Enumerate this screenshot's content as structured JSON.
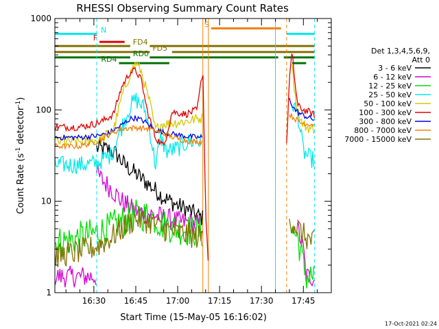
{
  "chart_data": {
    "type": "line",
    "title": "RHESSI Observing Summary Count Rates",
    "xlabel": "Start Time (15-May-05 16:16:02)",
    "ylabel": "Count Rate (s⁻¹ detector⁻¹)",
    "ylabel_parts": {
      "main": "Count Rate (s",
      "exp1": "-1",
      "mid": " detector",
      "exp2": "-1",
      "end": ")"
    },
    "y_scale": "log",
    "ylim": [
      1,
      1000
    ],
    "xlim": [
      "16:16",
      "17:55"
    ],
    "x_ticks": [
      "16:30",
      "16:45",
      "17:00",
      "17:15",
      "17:30",
      "17:45"
    ],
    "y_ticks": [
      "1",
      "10",
      "100",
      "1000"
    ],
    "grid": false,
    "legend": {
      "placement": "right",
      "header": "Det 1,3,4,5,6,9,",
      "header2": "Att 0",
      "entries": [
        {
          "label": "3 - 6 keV",
          "color": "#000000"
        },
        {
          "label": "6 - 12 keV",
          "color": "#d400d4"
        },
        {
          "label": "12 - 25 keV",
          "color": "#00e000"
        },
        {
          "label": "25 - 50 keV",
          "color": "#00e8e8"
        },
        {
          "label": "50 - 100 keV",
          "color": "#d4c800"
        },
        {
          "label": "100 - 300 keV",
          "color": "#e00000"
        },
        {
          "label": "300 - 800 keV",
          "color": "#0000e0"
        },
        {
          "label": "800 - 7000 keV",
          "color": "#f08000"
        },
        {
          "label": "7000 - 15000 keV",
          "color": "#807000"
        }
      ]
    },
    "bars": [
      {
        "label": "N",
        "color": "#00e8e8",
        "label_color": "#00e8e8",
        "y": 680,
        "segments": [
          [
            "16:16",
            "16:31"
          ],
          [
            "17:39",
            "17:49"
          ]
        ]
      },
      {
        "label": "F",
        "color": "#e00000",
        "label_color": "#e00000",
        "y": 555,
        "segments": [
          [
            "16:32",
            "16:41"
          ]
        ]
      },
      {
        "label": "S",
        "color": "#f08000",
        "label_color": "#f08000",
        "y": 780,
        "segments": [
          [
            "17:12",
            "17:37"
          ]
        ]
      },
      {
        "label": "FD4",
        "color": "#807000",
        "label_color": "#807000",
        "y": 500,
        "segments": [
          [
            "16:16",
            "16:43"
          ],
          [
            "16:50",
            "17:49"
          ]
        ]
      },
      {
        "label": "FD5",
        "color": "#807000",
        "label_color": "#807000",
        "y": 430,
        "segments": [
          [
            "16:16",
            "16:50"
          ],
          [
            "16:58",
            "17:49"
          ]
        ]
      },
      {
        "label": "RD0",
        "color": "#007000",
        "label_color": "#007000",
        "y": 375,
        "segments": [
          [
            "16:16",
            "16:43"
          ],
          [
            "16:50",
            "17:36"
          ],
          [
            "17:38",
            "17:49"
          ]
        ]
      },
      {
        "label": "RD4",
        "color": "#007000",
        "label_color": "#007000",
        "y": 325,
        "segments": [
          [
            "16:39",
            "16:57"
          ],
          [
            "17:41",
            "17:46"
          ]
        ]
      }
    ],
    "vlines": [
      {
        "time": "16:31",
        "color": "#00e8e8",
        "style": "dashed"
      },
      {
        "time": "17:09",
        "color": "#f08000",
        "style": "solid"
      },
      {
        "time": "17:11",
        "color": "#f08000",
        "style": "solid"
      },
      {
        "time": "17:35",
        "color": "#00e8e8",
        "style": "solid"
      },
      {
        "time": "17:39",
        "color": "#f08000",
        "style": "dashed"
      },
      {
        "time": "17:49",
        "color": "#00e8e8",
        "style": "dashed"
      }
    ],
    "series": [
      {
        "name": "3 - 6 keV",
        "color": "#000000",
        "noise": 0.1,
        "segments": [
          [
            [
              "16:31",
              38
            ],
            [
              "16:35",
              37
            ],
            [
              "16:38",
              33
            ],
            [
              "16:41",
              25
            ],
            [
              "16:45",
              20
            ],
            [
              "16:50",
              15
            ],
            [
              "16:55",
              11
            ],
            [
              "17:00",
              9
            ],
            [
              "17:04",
              8
            ],
            [
              "17:07",
              7
            ],
            [
              "17:09",
              6.5
            ]
          ]
        ]
      },
      {
        "name": "6 - 12 keV",
        "color": "#d400d4",
        "noise": 0.12,
        "segments": [
          [
            [
              "16:16",
              1.5
            ],
            [
              "16:31",
              1.5
            ]
          ],
          [
            [
              "16:31",
              20
            ],
            [
              "16:33",
              17
            ],
            [
              "16:36",
              14
            ],
            [
              "16:40",
              10
            ],
            [
              "16:44",
              8
            ],
            [
              "16:48",
              7.5
            ],
            [
              "16:52",
              7
            ],
            [
              "16:56",
              6.5
            ],
            [
              "17:00",
              6
            ],
            [
              "17:04",
              5.8
            ],
            [
              "17:09",
              5.5
            ]
          ],
          [
            [
              "17:43",
              5
            ],
            [
              "17:45",
              3
            ],
            [
              "17:46",
              1.5
            ],
            [
              "17:49",
              1.5
            ]
          ]
        ]
      },
      {
        "name": "12 - 25 keV",
        "color": "#00e000",
        "noise": 0.18,
        "segments": [
          [
            [
              "16:16",
              3.5
            ],
            [
              "16:22",
              3.8
            ],
            [
              "16:27",
              4.2
            ],
            [
              "16:31",
              4.5
            ],
            [
              "16:35",
              5
            ],
            [
              "16:40",
              6
            ],
            [
              "16:45",
              7
            ],
            [
              "16:50",
              7
            ],
            [
              "16:55",
              5.5
            ],
            [
              "17:00",
              5
            ],
            [
              "17:05",
              4.8
            ],
            [
              "17:09",
              4.5
            ]
          ],
          [
            [
              "17:41",
              5
            ],
            [
              "17:43",
              4
            ],
            [
              "17:45",
              2
            ],
            [
              "17:46",
              1.5
            ],
            [
              "17:49",
              1.5
            ]
          ]
        ]
      },
      {
        "name": "25 - 50 keV",
        "color": "#00e8e8",
        "noise": 0.1,
        "segments": [
          [
            [
              "16:16",
              25
            ],
            [
              "16:25",
              25
            ],
            [
              "16:31",
              26
            ],
            [
              "16:36",
              32
            ],
            [
              "16:40",
              65
            ],
            [
              "16:43",
              110
            ],
            [
              "16:45",
              130
            ],
            [
              "16:48",
              105
            ],
            [
              "16:50",
              60
            ],
            [
              "16:52",
              25
            ],
            [
              "16:54",
              50
            ],
            [
              "16:56",
              35
            ],
            [
              "17:00",
              38
            ],
            [
              "17:04",
              45
            ],
            [
              "17:09",
              45
            ]
          ],
          [
            [
              "17:41",
              120
            ],
            [
              "17:43",
              90
            ],
            [
              "17:45",
              35
            ],
            [
              "17:47",
              30
            ],
            [
              "17:49",
              28
            ]
          ]
        ]
      },
      {
        "name": "50 - 100 keV",
        "color": "#d4c800",
        "noise": 0.06,
        "segments": [
          [
            [
              "16:16",
              45
            ],
            [
              "16:25",
              45
            ],
            [
              "16:32",
              47
            ],
            [
              "16:37",
              60
            ],
            [
              "16:40",
              140
            ],
            [
              "16:43",
              250
            ],
            [
              "16:45",
              330
            ],
            [
              "16:47",
              260
            ],
            [
              "16:50",
              120
            ],
            [
              "16:52",
              60
            ],
            [
              "16:54",
              70
            ],
            [
              "16:58",
              72
            ],
            [
              "17:03",
              75
            ],
            [
              "17:07",
              80
            ],
            [
              "17:09",
              82
            ]
          ],
          [
            [
              "17:41",
              350
            ],
            [
              "17:42",
              140
            ],
            [
              "17:44",
              75
            ],
            [
              "17:46",
              65
            ],
            [
              "17:49",
              60
            ]
          ]
        ]
      },
      {
        "name": "100 - 300 keV",
        "color": "#e00000",
        "noise": 0.04,
        "segments": [
          [
            [
              "16:16",
              65
            ],
            [
              "16:25",
              65
            ],
            [
              "16:30",
              70
            ],
            [
              "16:33",
              75
            ],
            [
              "16:37",
              90
            ],
            [
              "16:40",
              180
            ],
            [
              "16:43",
              260
            ],
            [
              "16:45",
              270
            ],
            [
              "16:47",
              210
            ],
            [
              "16:49",
              100
            ],
            [
              "16:52",
              50
            ],
            [
              "16:55",
              40
            ],
            [
              "16:58",
              95
            ],
            [
              "17:03",
              90
            ],
            [
              "17:07",
              100
            ],
            [
              "17:09",
              280
            ],
            [
              "17:10",
              8
            ],
            [
              "17:11",
              2
            ]
          ],
          [
            [
              "17:39",
              40
            ],
            [
              "17:40",
              220
            ],
            [
              "17:41",
              420
            ],
            [
              "17:42",
              200
            ],
            [
              "17:43",
              110
            ],
            [
              "17:45",
              100
            ],
            [
              "17:47",
              95
            ],
            [
              "17:49",
              88
            ]
          ]
        ]
      },
      {
        "name": "300 - 800 keV",
        "color": "#0000e0",
        "noise": 0.03,
        "segments": [
          [
            [
              "16:16",
              50
            ],
            [
              "16:25",
              50
            ],
            [
              "16:31",
              52
            ],
            [
              "16:35",
              55
            ],
            [
              "16:39",
              65
            ],
            [
              "16:43",
              80
            ],
            [
              "16:45",
              82
            ],
            [
              "16:48",
              75
            ],
            [
              "16:52",
              60
            ],
            [
              "16:57",
              55
            ],
            [
              "17:02",
              52
            ],
            [
              "17:07",
              50
            ],
            [
              "17:09",
              50
            ]
          ],
          [
            [
              "17:40",
              130
            ],
            [
              "17:42",
              100
            ],
            [
              "17:44",
              90
            ],
            [
              "17:47",
              82
            ],
            [
              "17:49",
              78
            ]
          ]
        ]
      },
      {
        "name": "800 - 7000 keV",
        "color": "#f08000",
        "noise": 0.03,
        "segments": [
          [
            [
              "16:16",
              40
            ],
            [
              "16:25",
              40
            ],
            [
              "16:31",
              45
            ],
            [
              "16:36",
              55
            ],
            [
              "16:40",
              62
            ],
            [
              "16:45",
              64
            ],
            [
              "16:50",
              62
            ],
            [
              "16:55",
              55
            ],
            [
              "17:00",
              48
            ],
            [
              "17:05",
              45
            ],
            [
              "17:09",
              45
            ]
          ],
          [
            [
              "17:40",
              90
            ],
            [
              "17:42",
              80
            ],
            [
              "17:44",
              72
            ],
            [
              "17:47",
              70
            ],
            [
              "17:49",
              70
            ]
          ]
        ]
      },
      {
        "name": "7000 - 15000 keV",
        "color": "#807000",
        "noise": 0.14,
        "segments": [
          [
            [
              "16:16",
              2.5
            ],
            [
              "16:22",
              2.7
            ],
            [
              "16:28",
              3
            ],
            [
              "16:31",
              3.2
            ],
            [
              "16:36",
              4
            ],
            [
              "16:40",
              5
            ],
            [
              "16:45",
              6.5
            ],
            [
              "16:50",
              6
            ],
            [
              "16:55",
              5
            ],
            [
              "17:00",
              4.5
            ],
            [
              "17:05",
              4.2
            ],
            [
              "17:09",
              4
            ]
          ],
          [
            [
              "17:40",
              6.5
            ],
            [
              "17:43",
              5
            ],
            [
              "17:46",
              4
            ],
            [
              "17:49",
              3.5
            ]
          ]
        ]
      }
    ]
  },
  "footer": {
    "timestamp": "17-Oct-2021 02:24"
  }
}
